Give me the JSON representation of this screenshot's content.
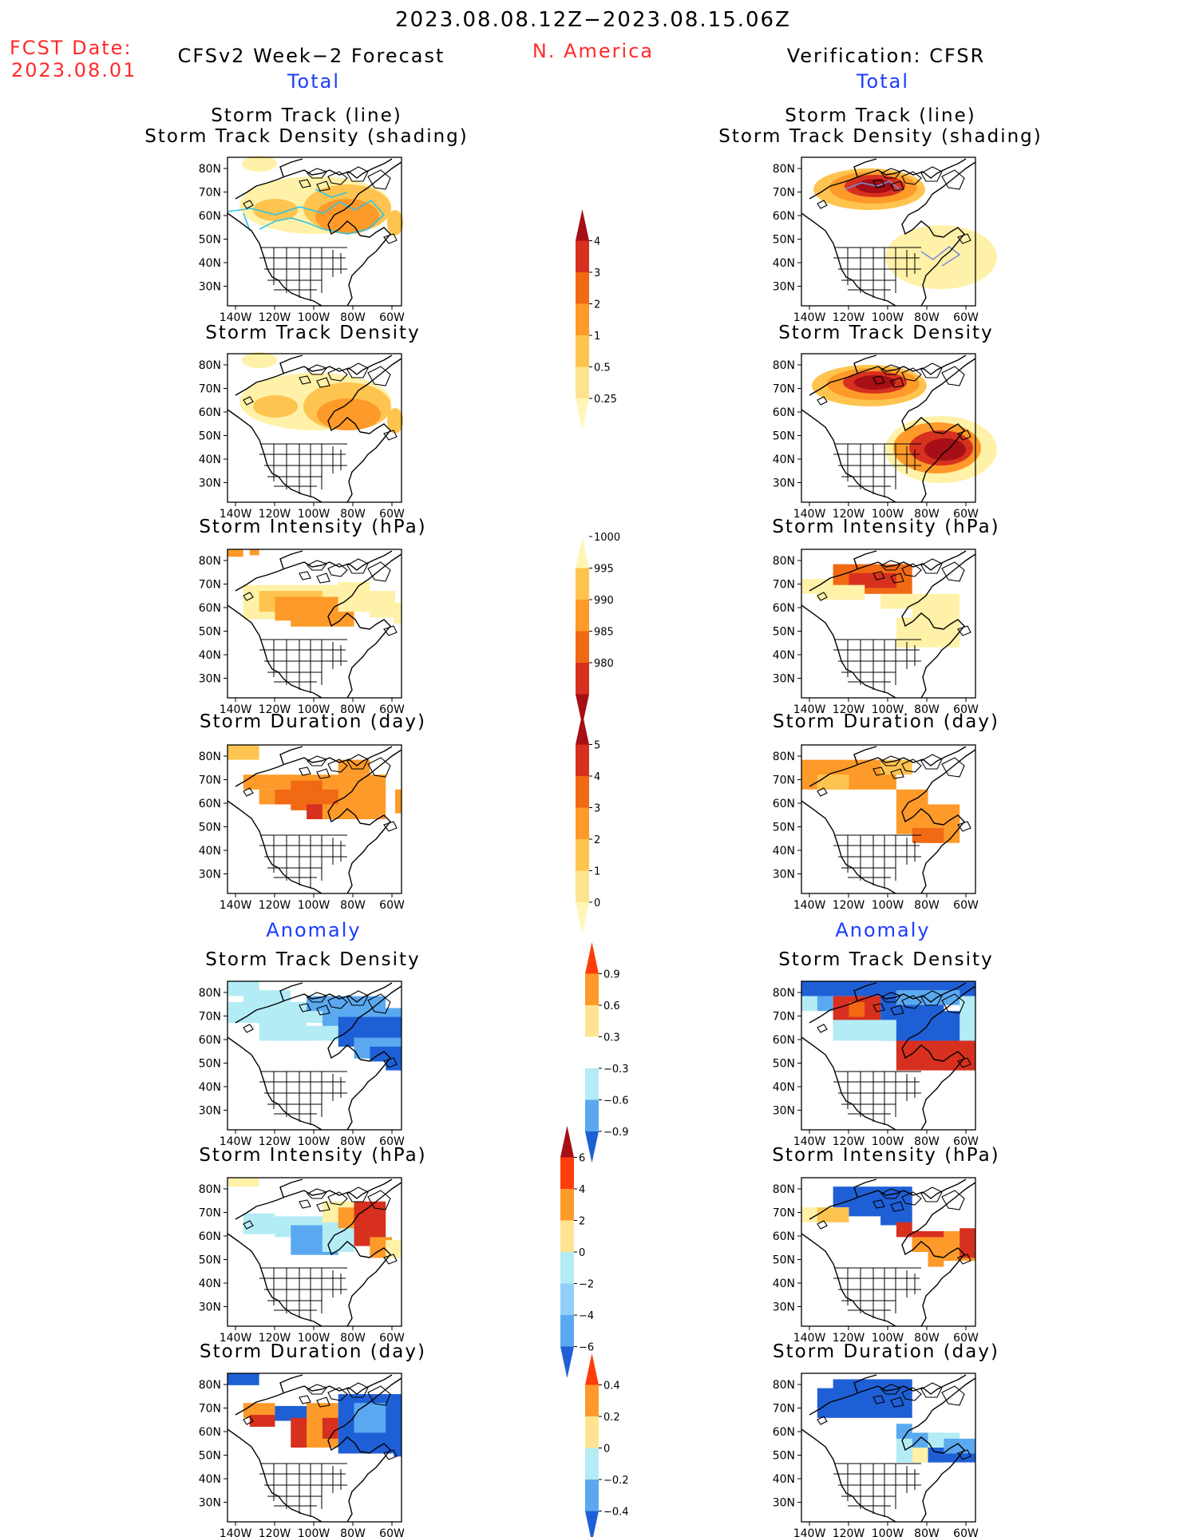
{
  "header": {
    "period": "2023.08.08.12Z−2023.08.15.06Z",
    "fcst_label": "FCST Date:",
    "fcst_date": "2023.08.01",
    "region": "N. America",
    "left_title": "CFSv2 Week−2 Forecast",
    "right_title": "Verification: CFSR",
    "total_label": "Total",
    "anomaly_label": "Anomaly"
  },
  "panel_titles": {
    "track_line": "Storm Track (line)",
    "track_shading": "Storm Track Density (shading)",
    "density": "Storm Track Density",
    "intensity": "Storm Intensity (hPa)",
    "duration": "Storm Duration (day)"
  },
  "axes": {
    "lat_labels": [
      "80N",
      "70N",
      "60N",
      "50N",
      "40N",
      "30N"
    ],
    "lon_labels": [
      "140W",
      "120W",
      "100W",
      "80W",
      "60W"
    ]
  },
  "colorbars": {
    "density": {
      "ticks": [
        "4",
        "3",
        "2",
        "1",
        "0.5",
        "0.25"
      ],
      "colors": [
        "#a50f15",
        "#d7301f",
        "#f16913",
        "#fd9a29",
        "#fec44f",
        "#fee391",
        "#fff5b8"
      ]
    },
    "intensity": {
      "ticks": [
        "1000",
        "995",
        "990",
        "985",
        "980"
      ],
      "colors": [
        "#fff5b8",
        "#fec44f",
        "#fd9a29",
        "#f16913",
        "#d7301f",
        "#a50f15"
      ]
    },
    "duration": {
      "ticks": [
        "5",
        "4",
        "3",
        "2",
        "1",
        "0"
      ],
      "colors": [
        "#a50f15",
        "#d7301f",
        "#f16913",
        "#fd9a29",
        "#fec44f",
        "#fee391",
        "#fff5b8"
      ]
    },
    "anom_density": {
      "ticks": [
        "0.9",
        "0.6",
        "0.3",
        "−0.3",
        "−0.6",
        "−0.9"
      ],
      "colors": [
        "#ff3d0a",
        "#fd9a29",
        "#fee391",
        "#ffffff",
        "#b3ecf5",
        "#5aa9f0",
        "#1f5fd6"
      ]
    },
    "anom_intensity": {
      "ticks": [
        "6",
        "4",
        "2",
        "0",
        "−2",
        "−4",
        "−6"
      ],
      "colors": [
        "#a50f15",
        "#ff3d0a",
        "#fd9a29",
        "#fee391",
        "#b3ecf5",
        "#90d0f8",
        "#5aa9f0",
        "#1f5fd6"
      ]
    },
    "anom_duration": {
      "ticks": [
        "0.4",
        "0.2",
        "0",
        "−0.2",
        "−0.4"
      ],
      "colors": [
        "#ff3d0a",
        "#fd9a29",
        "#fee391",
        "#b3ecf5",
        "#5aa9f0",
        "#1f5fd6"
      ]
    }
  },
  "palette": {
    "light_yellow": "#fff1a8",
    "yellow": "#fec44f",
    "orange": "#fd9a29",
    "dark_orange": "#f16913",
    "red": "#d7301f",
    "dark_red": "#a50f15",
    "light_blue": "#b3ecf5",
    "mid_blue": "#5aa9f0",
    "dark_blue": "#1f5fd6",
    "track_line": "#2ec4e6",
    "coast": "#000000"
  }
}
